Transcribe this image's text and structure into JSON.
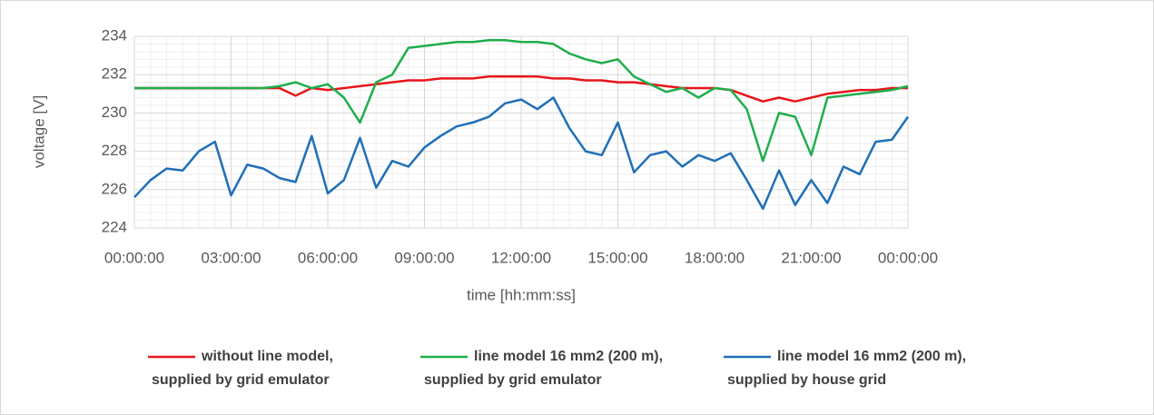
{
  "chart_data": {
    "type": "line",
    "xlabel": "time [hh:mm:ss]",
    "ylabel": "voltage [V]",
    "x": [
      0,
      0.5,
      1,
      1.5,
      2,
      2.5,
      3,
      3.5,
      4,
      4.5,
      5,
      5.5,
      6,
      6.5,
      7,
      7.5,
      8,
      8.5,
      9,
      9.5,
      10,
      10.5,
      11,
      11.5,
      12,
      12.5,
      13,
      13.5,
      14,
      14.5,
      15,
      15.5,
      16,
      16.5,
      17,
      17.5,
      18,
      18.5,
      19,
      19.5,
      20,
      20.5,
      21,
      21.5,
      22,
      22.5,
      23,
      23.5,
      24
    ],
    "series": [
      {
        "name": "without line model,\nsupplied by grid emulator",
        "color": "#e8151b",
        "values": [
          231.3,
          231.3,
          231.3,
          231.3,
          231.3,
          231.3,
          231.3,
          231.3,
          231.3,
          231.3,
          230.9,
          231.3,
          231.2,
          231.3,
          231.4,
          231.5,
          231.6,
          231.7,
          231.7,
          231.8,
          231.8,
          231.8,
          231.9,
          231.9,
          231.9,
          231.9,
          231.8,
          231.8,
          231.7,
          231.7,
          231.6,
          231.6,
          231.5,
          231.4,
          231.3,
          231.3,
          231.3,
          231.2,
          230.9,
          230.6,
          230.8,
          230.6,
          230.8,
          231.0,
          231.1,
          231.2,
          231.2,
          231.3,
          231.3
        ]
      },
      {
        "name": "line model 16 mm2 (200 m),\nsupplied by grid emulator",
        "color": "#1fae4c",
        "values": [
          231.3,
          231.3,
          231.3,
          231.3,
          231.3,
          231.3,
          231.3,
          231.3,
          231.3,
          231.4,
          231.6,
          231.3,
          231.5,
          230.8,
          229.5,
          231.6,
          232.0,
          233.4,
          233.5,
          233.6,
          233.7,
          233.7,
          233.8,
          233.8,
          233.7,
          233.7,
          233.6,
          233.1,
          232.8,
          232.6,
          232.8,
          231.9,
          231.5,
          231.1,
          231.3,
          230.8,
          231.3,
          231.2,
          230.2,
          227.5,
          230.0,
          229.8,
          227.8,
          230.8,
          230.9,
          231.0,
          231.1,
          231.2,
          231.4
        ]
      },
      {
        "name": "line model 16 mm2 (200 m),\nsupplied by house grid",
        "color": "#1f6fb8",
        "values": [
          225.6,
          226.5,
          227.1,
          227.0,
          228.0,
          228.5,
          225.7,
          227.3,
          227.1,
          226.6,
          226.4,
          228.8,
          225.8,
          226.5,
          228.7,
          226.1,
          227.5,
          227.2,
          228.2,
          228.8,
          229.3,
          229.5,
          229.8,
          230.5,
          230.7,
          230.2,
          230.8,
          229.2,
          228.0,
          227.8,
          229.5,
          226.9,
          227.8,
          228.0,
          227.2,
          227.8,
          227.5,
          227.9,
          226.5,
          225.0,
          227.0,
          225.2,
          226.5,
          225.3,
          227.2,
          226.8,
          228.5,
          228.6,
          229.8
        ]
      }
    ],
    "xlim": [
      0,
      24
    ],
    "xticks": [
      {
        "value": 0,
        "label": "00:00:00"
      },
      {
        "value": 3,
        "label": "03:00:00"
      },
      {
        "value": 6,
        "label": "06:00:00"
      },
      {
        "value": 9,
        "label": "09:00:00"
      },
      {
        "value": 12,
        "label": "12:00:00"
      },
      {
        "value": 15,
        "label": "15:00:00"
      },
      {
        "value": 18,
        "label": "18:00:00"
      },
      {
        "value": 21,
        "label": "21:00:00"
      },
      {
        "value": 24,
        "label": "00:00:00"
      }
    ],
    "ylim": [
      224,
      234
    ],
    "yticks": [
      224,
      226,
      228,
      230,
      232,
      234
    ],
    "grid": true,
    "minor_grid": true,
    "legend": "bottom"
  }
}
